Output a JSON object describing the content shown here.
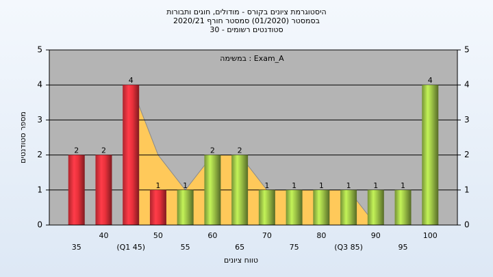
{
  "chart_data": {
    "type": "bar",
    "title": "היסטוגרמת ציונים בקורס - מודולים, חוגים ותבורות",
    "subtitle": "בסמסטר  (01/2020)  סמסטר חורף  2020/21",
    "subtitle2": "סטודנטים רשומים - 30",
    "annotation": "במשימה : Exam_A",
    "y_label": "מספר סטודנטים",
    "x_label": "טווח ציונים",
    "categories": [
      "35",
      "40",
      "(Q1 45)",
      "50",
      "55",
      "60",
      "65",
      "70",
      "75",
      "80",
      "(Q3 85)",
      "90",
      "95",
      "100"
    ],
    "values": [
      2,
      2,
      4,
      1,
      1,
      2,
      2,
      1,
      1,
      1,
      1,
      1,
      1,
      4
    ],
    "bar_colors": [
      "#e8303a",
      "#e8303a",
      "#e8303a",
      "#e8303a",
      "#9cc246",
      "#9cc246",
      "#9cc246",
      "#9cc246",
      "#9cc246",
      "#9cc246",
      "#9cc246",
      "#9cc246",
      "#9cc246",
      "#9cc246"
    ],
    "area": {
      "color": "#ffc95a",
      "values": [
        null,
        null,
        4,
        2,
        1,
        2,
        2,
        1,
        1,
        1,
        1,
        0,
        null,
        null
      ]
    },
    "ylim": [
      0,
      5
    ],
    "yticks": [
      0,
      1,
      2,
      3,
      4,
      5
    ],
    "grid": true,
    "background": "#b4b4b4"
  }
}
